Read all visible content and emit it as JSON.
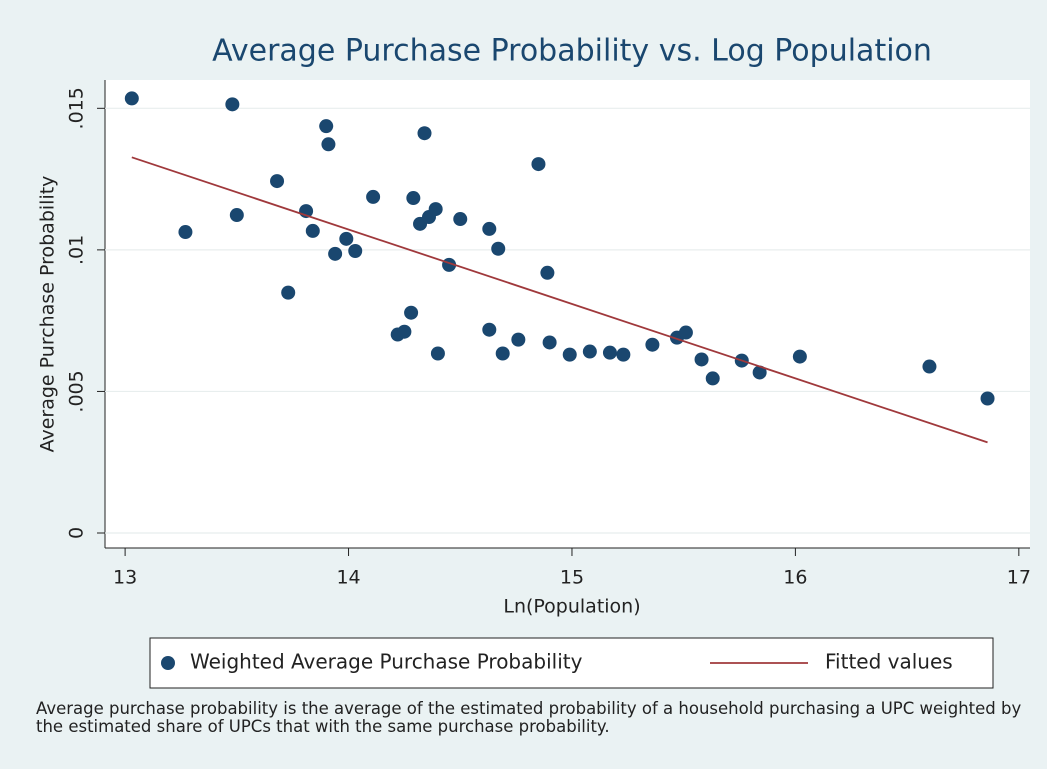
{
  "chart_data": {
    "type": "scatter",
    "title": "Average Purchase Probability vs. Log Population",
    "x_label": "Ln(Population)",
    "y_label": "Average Purchase Probability",
    "note": "Average purchase probability is the average of the estimated probability of a household purchasing a UPC weighted by the estimated share of UPCs that with the same purchase probability.",
    "xlim": [
      12.91,
      17.05
    ],
    "ylim": [
      -0.00053,
      0.016
    ],
    "xticks": [
      13,
      14,
      15,
      16,
      17
    ],
    "yticks": [
      0,
      {
        "value": 0.005,
        "label": ".005"
      },
      {
        "value": 0.01,
        "label": ".01"
      },
      {
        "value": 0.015,
        "label": ".015"
      }
    ],
    "grid": true,
    "legend_position": "bottom",
    "series": [
      {
        "name": "Weighted Average Purchase Probability",
        "type": "scatter",
        "color": "#1a476f",
        "x": [
          13.03,
          13.27,
          13.48,
          13.5,
          13.68,
          13.73,
          13.81,
          13.84,
          13.9,
          13.91,
          13.94,
          13.99,
          14.03,
          14.11,
          14.22,
          14.25,
          14.28,
          14.29,
          14.32,
          14.34,
          14.36,
          14.39,
          14.4,
          14.45,
          14.5,
          14.63,
          14.63,
          14.67,
          14.69,
          14.76,
          14.85,
          14.89,
          14.9,
          14.99,
          15.08,
          15.17,
          15.23,
          15.36,
          15.47,
          15.51,
          15.58,
          15.63,
          15.76,
          15.84,
          16.02,
          16.6,
          16.86
        ],
        "values": [
          0.01535,
          0.01063,
          0.01514,
          0.01123,
          0.01243,
          0.00849,
          0.01137,
          0.01067,
          0.01437,
          0.01373,
          0.00986,
          0.01039,
          0.00996,
          0.01187,
          0.00701,
          0.00711,
          0.00778,
          0.01183,
          0.01092,
          0.01412,
          0.01116,
          0.01144,
          0.00634,
          0.00947,
          0.01109,
          0.01074,
          0.00718,
          0.01004,
          0.00634,
          0.00683,
          0.01303,
          0.00919,
          0.00673,
          0.0063,
          0.00641,
          0.00637,
          0.0063,
          0.00665,
          0.0069,
          0.00708,
          0.00613,
          0.00546,
          0.00609,
          0.00567,
          0.00623,
          0.00588,
          0.00475
        ]
      },
      {
        "name": "Fitted values",
        "type": "line",
        "color": "#a0393c",
        "x": [
          13.03,
          16.86
        ],
        "values": [
          0.01327,
          0.0032
        ]
      }
    ]
  }
}
